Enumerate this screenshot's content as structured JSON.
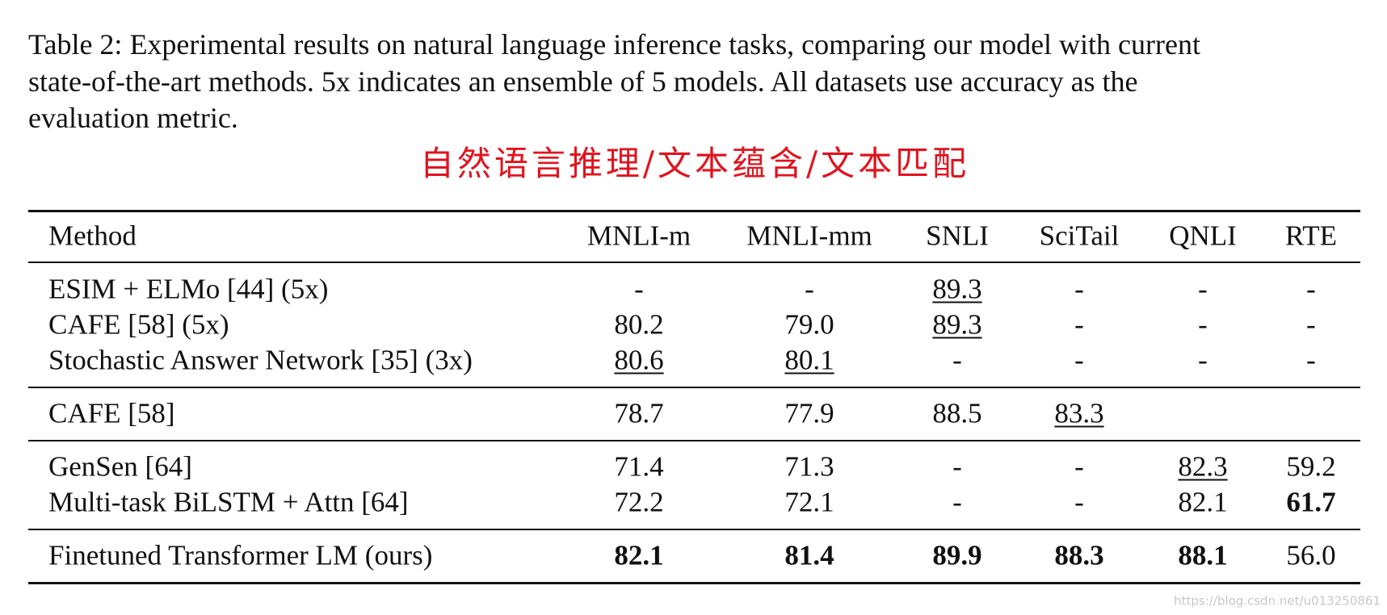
{
  "caption": [
    "Table 2: Experimental results on natural language inference tasks, comparing our model with current",
    "state-of-the-art methods.  5x indicates an ensemble of 5 models.  All datasets use accuracy as the",
    "evaluation metric."
  ],
  "annotation": "自然语言推理/文本蕴含/文本匹配",
  "table": {
    "header": [
      "Method",
      "MNLI-m",
      "MNLI-mm",
      "SNLI",
      "SciTail",
      "QNLI",
      "RTE"
    ],
    "groups": [
      {
        "rows": [
          {
            "method": "ESIM + ELMo [44] (5x)",
            "cells": [
              {
                "text": "-"
              },
              {
                "text": "-"
              },
              {
                "text": "89.3",
                "underline": true
              },
              {
                "text": "-"
              },
              {
                "text": "-"
              },
              {
                "text": "-"
              }
            ]
          },
          {
            "method": "CAFE [58] (5x)",
            "cells": [
              {
                "text": "80.2"
              },
              {
                "text": "79.0"
              },
              {
                "text": "89.3",
                "underline": true
              },
              {
                "text": "-"
              },
              {
                "text": "-"
              },
              {
                "text": "-"
              }
            ]
          },
          {
            "method": "Stochastic Answer Network [35] (3x)",
            "cells": [
              {
                "text": "80.6",
                "underline": true
              },
              {
                "text": "80.1",
                "underline": true
              },
              {
                "text": "-"
              },
              {
                "text": "-"
              },
              {
                "text": "-"
              },
              {
                "text": "-"
              }
            ]
          }
        ]
      },
      {
        "rows": [
          {
            "method": "CAFE [58]",
            "cells": [
              {
                "text": "78.7"
              },
              {
                "text": "77.9"
              },
              {
                "text": "88.5"
              },
              {
                "text": "83.3",
                "underline": true
              },
              null,
              null
            ]
          }
        ]
      },
      {
        "rows": [
          {
            "method": "GenSen [64]",
            "cells": [
              {
                "text": "71.4"
              },
              {
                "text": "71.3"
              },
              {
                "text": "-"
              },
              {
                "text": "-"
              },
              {
                "text": "82.3",
                "underline": true
              },
              {
                "text": "59.2"
              }
            ]
          },
          {
            "method": "Multi-task BiLSTM + Attn [64]",
            "cells": [
              {
                "text": "72.2"
              },
              {
                "text": "72.1"
              },
              {
                "text": "-"
              },
              {
                "text": "-"
              },
              {
                "text": "82.1"
              },
              {
                "text": "61.7",
                "bold": true
              }
            ]
          }
        ]
      },
      {
        "rows": [
          {
            "method": "Finetuned Transformer LM (ours)",
            "cells": [
              {
                "text": "82.1",
                "bold": true
              },
              {
                "text": "81.4",
                "bold": true
              },
              {
                "text": "89.9",
                "bold": true
              },
              {
                "text": "88.3",
                "bold": true
              },
              {
                "text": "88.1",
                "bold": true
              },
              {
                "text": "56.0"
              }
            ]
          }
        ]
      }
    ]
  },
  "watermark": "https://blog.csdn.net/u013250861"
}
